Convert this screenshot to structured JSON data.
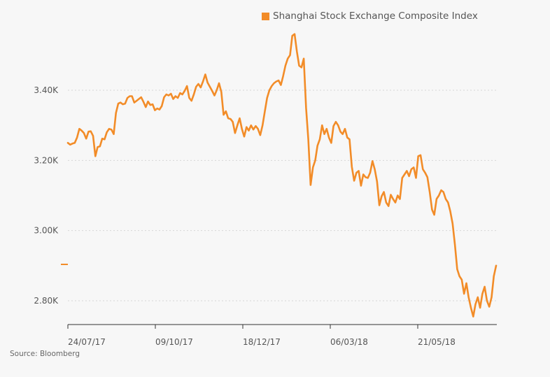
{
  "legend": {
    "label": "Shanghai Stock Exchange Composite Index",
    "color": "#f28c28"
  },
  "source": "Source: Bloomberg",
  "chart_data": {
    "type": "line",
    "title": "",
    "xlabel": "",
    "ylabel": "",
    "ylim": [
      2730,
      3570
    ],
    "y_ticks": [
      {
        "value": 2800,
        "label": "2.80K"
      },
      {
        "value": 3000,
        "label": "3.00K"
      },
      {
        "value": 3200,
        "label": "3.20K"
      },
      {
        "value": 3400,
        "label": "3.40K"
      }
    ],
    "x_ticks": [
      "24/07/17",
      "09/10/17",
      "18/12/17",
      "06/03/18",
      "21/05/18"
    ],
    "grid": "horizontal dotted",
    "legend_position": "top-right",
    "series": [
      {
        "name": "Shanghai Stock Exchange Composite Index",
        "color": "#f28c28",
        "x_start": "24/07/17",
        "x_end": "12/07/18",
        "values": [
          3250,
          3245,
          3248,
          3250,
          3265,
          3290,
          3285,
          3278,
          3262,
          3282,
          3283,
          3270,
          3212,
          3238,
          3240,
          3262,
          3260,
          3280,
          3290,
          3288,
          3275,
          3335,
          3362,
          3365,
          3360,
          3362,
          3378,
          3383,
          3383,
          3365,
          3370,
          3375,
          3380,
          3367,
          3352,
          3368,
          3358,
          3360,
          3343,
          3348,
          3345,
          3355,
          3380,
          3388,
          3385,
          3390,
          3375,
          3383,
          3378,
          3392,
          3388,
          3398,
          3412,
          3378,
          3370,
          3388,
          3410,
          3418,
          3408,
          3425,
          3445,
          3422,
          3410,
          3398,
          3385,
          3400,
          3420,
          3395,
          3330,
          3340,
          3320,
          3318,
          3310,
          3278,
          3300,
          3320,
          3290,
          3268,
          3295,
          3285,
          3300,
          3288,
          3298,
          3290,
          3272,
          3300,
          3340,
          3378,
          3400,
          3412,
          3420,
          3425,
          3428,
          3415,
          3440,
          3470,
          3490,
          3500,
          3555,
          3560,
          3510,
          3470,
          3465,
          3490,
          3350,
          3260,
          3130,
          3180,
          3200,
          3242,
          3260,
          3300,
          3275,
          3290,
          3265,
          3250,
          3298,
          3310,
          3300,
          3282,
          3275,
          3290,
          3265,
          3260,
          3182,
          3142,
          3165,
          3170,
          3128,
          3160,
          3152,
          3150,
          3165,
          3198,
          3175,
          3140,
          3072,
          3098,
          3110,
          3080,
          3070,
          3102,
          3090,
          3080,
          3100,
          3090,
          3150,
          3160,
          3170,
          3155,
          3175,
          3180,
          3150,
          3212,
          3215,
          3175,
          3165,
          3152,
          3110,
          3060,
          3045,
          3090,
          3100,
          3115,
          3110,
          3090,
          3080,
          3055,
          3020,
          2960,
          2890,
          2870,
          2860,
          2820,
          2850,
          2810,
          2780,
          2755,
          2790,
          2810,
          2780,
          2820,
          2840,
          2800,
          2783,
          2810,
          2870,
          2900
        ]
      }
    ]
  }
}
